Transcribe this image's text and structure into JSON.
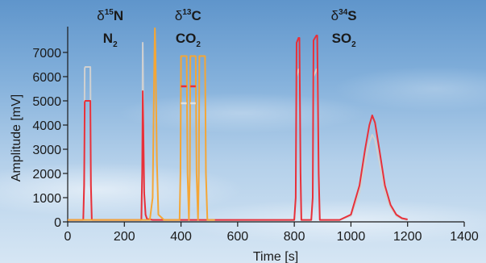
{
  "chart_data": {
    "type": "line",
    "xlabel": "Time [s]",
    "ylabel": "Amplitude [mV]",
    "xlim": [
      0,
      1400
    ],
    "ylim": [
      0,
      8000
    ],
    "xticks": [
      0,
      200,
      400,
      600,
      800,
      1000,
      1200,
      1400
    ],
    "yticks": [
      0,
      1000,
      2000,
      3000,
      4000,
      5000,
      6000,
      7000
    ],
    "grid": false,
    "annotations": [
      {
        "isotope": "δ15N",
        "gas": "N2",
        "x": 150
      },
      {
        "isotope": "δ13C",
        "gas": "CO2",
        "x": 425
      },
      {
        "isotope": "δ34S",
        "gas": "SO2",
        "x": 975
      }
    ],
    "series": [
      {
        "color": "#e8303a",
        "x": [
          0,
          55,
          58,
          60,
          62,
          80,
          82,
          85,
          260,
          263,
          265,
          267,
          270,
          275,
          280,
          300,
          800,
          805,
          808,
          815,
          818,
          822,
          825,
          860,
          865,
          868,
          878,
          881,
          886,
          890,
          960,
          1000,
          1030,
          1050,
          1065,
          1075,
          1085,
          1100,
          1120,
          1140,
          1160,
          1180,
          1200
        ],
        "values": [
          80,
          80,
          1500,
          4950,
          5000,
          5000,
          1500,
          80,
          80,
          2000,
          5400,
          4000,
          1200,
          300,
          120,
          80,
          80,
          1000,
          7400,
          7600,
          7600,
          2000,
          80,
          80,
          1000,
          7500,
          7700,
          7700,
          2000,
          80,
          80,
          300,
          1500,
          3000,
          4000,
          4400,
          4100,
          3000,
          1500,
          700,
          300,
          150,
          100
        ]
      },
      {
        "color": "#d0d0d0",
        "x": [
          0,
          55,
          58,
          60,
          62,
          80,
          82,
          85,
          260,
          263,
          265,
          267,
          270,
          275,
          280,
          300,
          800,
          805,
          808,
          815,
          818,
          822,
          825,
          860,
          865,
          868,
          878,
          881,
          886,
          890,
          960,
          1000,
          1030,
          1050,
          1065,
          1075,
          1085,
          1100,
          1120,
          1140,
          1160,
          1180,
          1200
        ],
        "values": [
          80,
          80,
          2000,
          6350,
          6400,
          6400,
          2000,
          80,
          80,
          2500,
          7400,
          5000,
          1200,
          300,
          120,
          80,
          80,
          1000,
          6000,
          6300,
          6300,
          2000,
          80,
          80,
          1000,
          6000,
          6300,
          6300,
          2000,
          80,
          80,
          250,
          1200,
          2500,
          3300,
          3600,
          3400,
          2500,
          1200,
          600,
          250,
          120,
          80
        ]
      },
      {
        "color": "#f4a636",
        "x": [
          0,
          290,
          300,
          305,
          308,
          310,
          315,
          320,
          340,
          395,
          398,
          400,
          420,
          423,
          428,
          431,
          433,
          452,
          455,
          460,
          463,
          465,
          485,
          488,
          493,
          520
        ],
        "values": [
          80,
          80,
          1000,
          6000,
          8000,
          7000,
          2500,
          300,
          80,
          80,
          2000,
          6850,
          6850,
          2000,
          80,
          2000,
          6850,
          6850,
          2000,
          80,
          2000,
          6850,
          6850,
          2000,
          80,
          80
        ]
      }
    ],
    "plateau_marks": [
      {
        "color": "#e8303a",
        "x": [
          400,
          420,
          433,
          452
        ],
        "values": [
          5600,
          5600,
          5600,
          5600
        ]
      },
      {
        "color": "#e0e0e0",
        "x": [
          400,
          420,
          433,
          452
        ],
        "values": [
          4900,
          4900,
          4900,
          4900
        ]
      }
    ]
  }
}
